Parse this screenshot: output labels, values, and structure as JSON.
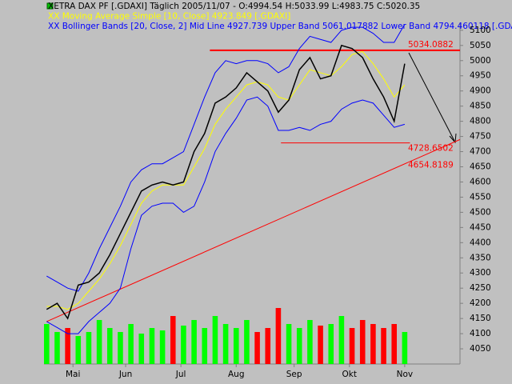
{
  "chart_data": {
    "type": "line",
    "header": [
      "XETRA DAX PF [.GDAXI]  Täglich  2005/11/07 - O:4994.54 H:5033.99 L:4983.75 C:5020.35",
      "XX Moving Average Simple [10, Close] 4923.849 [.GDAXI]",
      "XX Bollinger Bands [20, Close, 2] Mid Line 4927.739 Upper Band 5061.017882 Lower Band 4794.460118 [.GDAXI]"
    ],
    "header_colors": [
      "#000000",
      "#ffff00",
      "#0000ff"
    ],
    "x": [
      0,
      4,
      8,
      12,
      16,
      20,
      24,
      28,
      32,
      36,
      40,
      44,
      48,
      52,
      56,
      60,
      64,
      68,
      72,
      76,
      80,
      84,
      88,
      92,
      96,
      100,
      104,
      108,
      112,
      116,
      120,
      124,
      128,
      132,
      136
    ],
    "series": [
      {
        "color": "#0000ff",
        "values": [
          4290,
          4270,
          4250,
          4240,
          4300,
          4380,
          4450,
          4520,
          4600,
          4640,
          4660,
          4660,
          4680,
          4700,
          4790,
          4880,
          4960,
          5000,
          4990,
          5000,
          5000,
          4990,
          4960,
          4980,
          5040,
          5080,
          5070,
          5060,
          5100,
          5110,
          5110,
          5090,
          5060,
          5060,
          5120
        ]
      },
      {
        "color": "#0000ff",
        "values": [
          4140,
          4120,
          4100,
          4100,
          4140,
          4170,
          4200,
          4250,
          4380,
          4490,
          4520,
          4530,
          4530,
          4500,
          4520,
          4600,
          4700,
          4760,
          4810,
          4870,
          4880,
          4850,
          4770,
          4770,
          4780,
          4770,
          4790,
          4800,
          4840,
          4860,
          4870,
          4860,
          4820,
          4780,
          4790
        ]
      },
      {
        "color": "#ffff00",
        "values": [
          4190,
          4190,
          4180,
          4200,
          4240,
          4280,
          4330,
          4390,
          4460,
          4530,
          4570,
          4590,
          4590,
          4590,
          4650,
          4710,
          4790,
          4840,
          4880,
          4920,
          4930,
          4920,
          4880,
          4870,
          4920,
          4970,
          4960,
          4950,
          4980,
          5020,
          5030,
          4990,
          4940,
          4880,
          4920
        ]
      },
      {
        "color": "#000000",
        "values": [
          4180,
          4200,
          4150,
          4260,
          4270,
          4300,
          4360,
          4430,
          4500,
          4570,
          4590,
          4600,
          4590,
          4600,
          4700,
          4760,
          4860,
          4880,
          4910,
          4960,
          4930,
          4900,
          4830,
          4870,
          4970,
          5010,
          4940,
          4950,
          5050,
          5040,
          5010,
          4940,
          4880,
          4800,
          4990
        ]
      }
    ],
    "volume": {
      "axis": "y2",
      "values": [
        50,
        40,
        45,
        35,
        40,
        55,
        45,
        40,
        50,
        38,
        45,
        42,
        60,
        48,
        55,
        45,
        60,
        50,
        45,
        55,
        40,
        45,
        70,
        50,
        45,
        55,
        48,
        50,
        60,
        45,
        55,
        50,
        45,
        50,
        40
      ],
      "up_color": "#00ff00",
      "down_color": "#ff0000"
    },
    "y2lim": [
      0,
      100
    ],
    "xlim": [
      -1,
      157
    ],
    "xticks": [
      {
        "value": 10,
        "label": "Mai"
      },
      {
        "value": 30,
        "label": "Jun"
      },
      {
        "value": 51,
        "label": "Jul"
      },
      {
        "value": 72,
        "label": "Aug"
      },
      {
        "value": 94,
        "label": "Sep"
      },
      {
        "value": 115,
        "label": "Okt"
      },
      {
        "value": 136,
        "label": "Nov"
      }
    ],
    "ylim": [
      4000,
      5126
    ],
    "yticks": [
      4050,
      4100,
      4150,
      4200,
      4250,
      4300,
      4350,
      4400,
      4450,
      4500,
      4550,
      4600,
      4650,
      4700,
      4750,
      4800,
      4850,
      4900,
      4950,
      5000,
      5050,
      5100
    ],
    "price_lines": [
      {
        "value": 5034.0882,
        "x": [
          62,
          157
        ]
      },
      {
        "value": 4728.6502,
        "x": [
          89,
          138
        ]
      }
    ],
    "trend_line": {
      "x": [
        0,
        157
      ],
      "y": [
        4140,
        4740
      ]
    },
    "trend_value": 4654.8189,
    "line_color": "#ff0000"
  }
}
